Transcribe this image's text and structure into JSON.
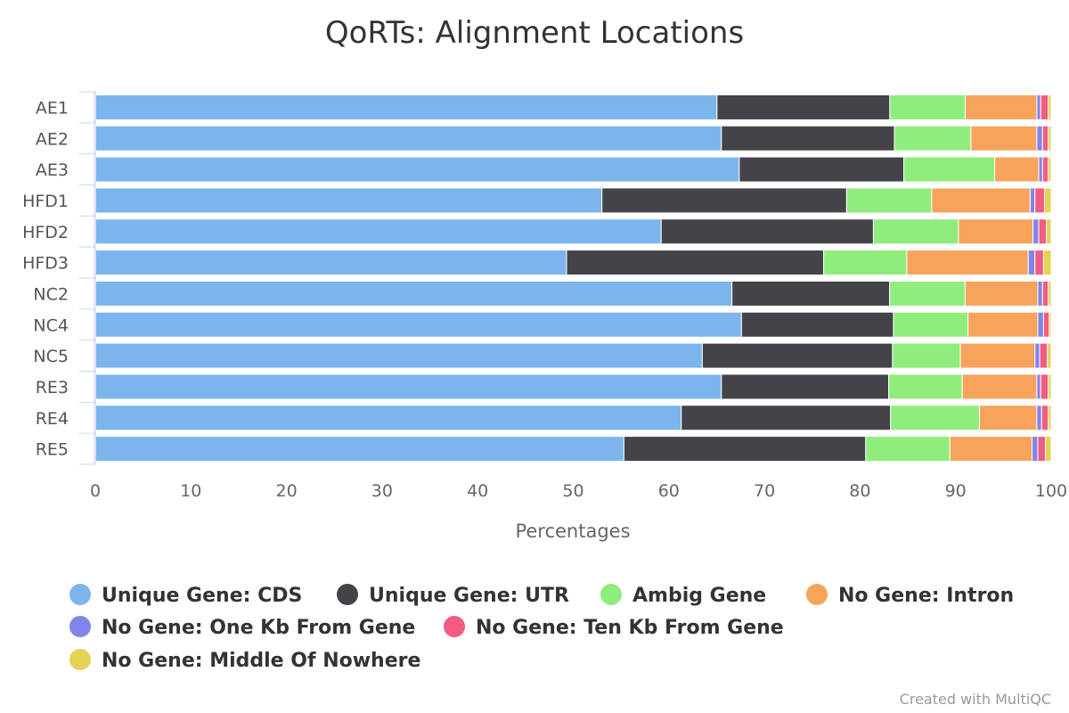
{
  "chart_data": {
    "type": "bar",
    "orientation": "horizontal",
    "stacking": "percent",
    "title": "QoRTs: Alignment Locations",
    "xlabel": "Percentages",
    "ylabel": "",
    "xlim": [
      0,
      100
    ],
    "x_ticks": [
      "0",
      "10",
      "20",
      "30",
      "40",
      "50",
      "60",
      "70",
      "80",
      "90",
      "100"
    ],
    "grid": false,
    "legend_position": "bottom",
    "categories": [
      "AE1",
      "AE2",
      "AE3",
      "HFD1",
      "HFD2",
      "HFD3",
      "NC2",
      "NC4",
      "NC5",
      "RE3",
      "RE4",
      "RE5"
    ],
    "series": [
      {
        "name": "Unique Gene: CDS",
        "color": "#7cb5ec",
        "values": [
          65.1,
          65.5,
          67.3,
          53.0,
          59.2,
          49.3,
          66.6,
          67.6,
          63.5,
          65.5,
          61.3,
          55.3
        ]
      },
      {
        "name": "Unique Gene: UTR",
        "color": "#434348",
        "values": [
          18.1,
          18.1,
          17.2,
          25.6,
          22.2,
          26.9,
          16.5,
          15.9,
          19.9,
          17.5,
          21.9,
          25.3
        ]
      },
      {
        "name": "Ambig Gene",
        "color": "#90ed7d",
        "values": [
          7.9,
          8.0,
          9.5,
          8.9,
          8.9,
          8.7,
          7.9,
          7.8,
          7.1,
          7.7,
          9.3,
          8.8
        ]
      },
      {
        "name": "No Gene: Intron",
        "color": "#f7a35c",
        "values": [
          7.5,
          6.9,
          4.6,
          10.3,
          7.8,
          12.7,
          7.6,
          7.3,
          7.8,
          7.8,
          6.0,
          8.6
        ]
      },
      {
        "name": "No Gene: One Kb From Gene",
        "color": "#8085e9",
        "values": [
          0.4,
          0.6,
          0.4,
          0.5,
          0.6,
          0.7,
          0.5,
          0.6,
          0.5,
          0.4,
          0.5,
          0.6
        ]
      },
      {
        "name": "No Gene: Ten Kb From Gene",
        "color": "#f15c80",
        "values": [
          0.8,
          0.6,
          0.6,
          1.0,
          0.8,
          0.9,
          0.6,
          0.6,
          0.8,
          0.8,
          0.7,
          0.8
        ]
      },
      {
        "name": "No Gene: Middle Of Nowhere",
        "color": "#e4d354",
        "values": [
          0.3,
          0.3,
          0.3,
          0.7,
          0.5,
          0.8,
          0.3,
          0.2,
          0.4,
          0.3,
          0.3,
          0.6
        ]
      }
    ]
  },
  "credit": "Created with MultiQC"
}
